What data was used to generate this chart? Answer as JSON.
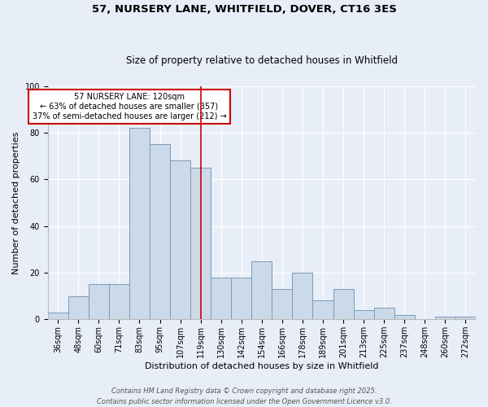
{
  "title": "57, NURSERY LANE, WHITFIELD, DOVER, CT16 3ES",
  "subtitle": "Size of property relative to detached houses in Whitfield",
  "xlabel": "Distribution of detached houses by size in Whitfield",
  "ylabel": "Number of detached properties",
  "footer_line1": "Contains HM Land Registry data © Crown copyright and database right 2025.",
  "footer_line2": "Contains public sector information licensed under the Open Government Licence v3.0.",
  "categories": [
    "36sqm",
    "48sqm",
    "60sqm",
    "71sqm",
    "83sqm",
    "95sqm",
    "107sqm",
    "119sqm",
    "130sqm",
    "142sqm",
    "154sqm",
    "166sqm",
    "178sqm",
    "189sqm",
    "201sqm",
    "213sqm",
    "225sqm",
    "237sqm",
    "248sqm",
    "260sqm",
    "272sqm"
  ],
  "values": [
    3,
    10,
    15,
    15,
    82,
    75,
    68,
    65,
    18,
    18,
    25,
    13,
    20,
    8,
    13,
    4,
    5,
    2,
    0,
    1,
    1
  ],
  "bar_color": "#ccd9e8",
  "bar_edge_color": "#7799bb",
  "red_line_x": 7,
  "annotation_text": "57 NURSERY LANE: 120sqm\n← 63% of detached houses are smaller (357)\n37% of semi-detached houses are larger (212) →",
  "annotation_box_facecolor": "#ffffff",
  "annotation_box_edgecolor": "#cc0000",
  "bg_color": "#e8eef8",
  "plot_bg_color": "#e8eef8",
  "ylim": [
    0,
    100
  ],
  "yticks": [
    0,
    20,
    40,
    60,
    80,
    100
  ],
  "title_fontsize": 9.5,
  "subtitle_fontsize": 8.5,
  "label_fontsize": 8,
  "tick_fontsize": 7,
  "annotation_fontsize": 7,
  "footer_fontsize": 6
}
